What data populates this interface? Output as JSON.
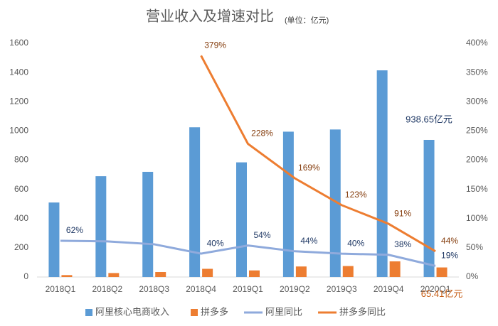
{
  "chart_data": {
    "type": "bar",
    "title": "营业收入及增速对比",
    "subtitle": "(单位：亿元)",
    "categories": [
      "2018Q1",
      "2018Q2",
      "2018Q3",
      "2018Q4",
      "2019Q1",
      "2019Q2",
      "2019Q3",
      "2019Q4",
      "2020Q1"
    ],
    "series": [
      {
        "name": "阿里核心电商收入",
        "type": "bar",
        "color": "#5b9bd5",
        "label_color": "#1f3864",
        "values": [
          510,
          690,
          720,
          1025,
          785,
          995,
          1010,
          1415,
          938.65
        ],
        "value_labels": [
          null,
          null,
          null,
          null,
          null,
          null,
          null,
          null,
          "938.65亿元"
        ]
      },
      {
        "name": "拼多多",
        "type": "bar",
        "color": "#ed7d31",
        "label_color": "#c55a11",
        "values": [
          13,
          27,
          34,
          56,
          45,
          72,
          75,
          107,
          65.41
        ],
        "value_labels": [
          null,
          null,
          null,
          null,
          null,
          null,
          null,
          null,
          "65.41亿元"
        ]
      },
      {
        "name": "阿里同比",
        "type": "line",
        "axis": "y2",
        "color": "#8faadc",
        "label_color": "#1f3864",
        "values": [
          62,
          61,
          56,
          40,
          54,
          44,
          40,
          38,
          19
        ],
        "value_labels": [
          "62%",
          null,
          null,
          "40%",
          "54%",
          "44%",
          "40%",
          "38%",
          "19%"
        ]
      },
      {
        "name": "拼多多同比",
        "type": "line",
        "axis": "y2",
        "color": "#ed7d31",
        "label_color": "#843c0c",
        "values": [
          null,
          null,
          null,
          379,
          228,
          169,
          123,
          91,
          44
        ],
        "value_labels": [
          null,
          null,
          null,
          "379%",
          "228%",
          "169%",
          "123%",
          "91%",
          "44%"
        ]
      }
    ],
    "ylim": [
      0,
      1600
    ],
    "yticks": [
      0,
      200,
      400,
      600,
      800,
      1000,
      1200,
      1400,
      1600
    ],
    "y2lim": [
      0,
      400
    ],
    "y2ticks": [
      {
        "value": 0,
        "label": "0%"
      },
      {
        "value": 50,
        "label": "50%"
      },
      {
        "value": 100,
        "label": "100%"
      },
      {
        "value": 150,
        "label": "150%"
      },
      {
        "value": 200,
        "label": "200%"
      },
      {
        "value": 250,
        "label": "250%"
      },
      {
        "value": 300,
        "label": "300%"
      },
      {
        "value": 350,
        "label": "350%"
      },
      {
        "value": 400,
        "label": "400%"
      }
    ],
    "grid": false,
    "legend": "bottom"
  }
}
